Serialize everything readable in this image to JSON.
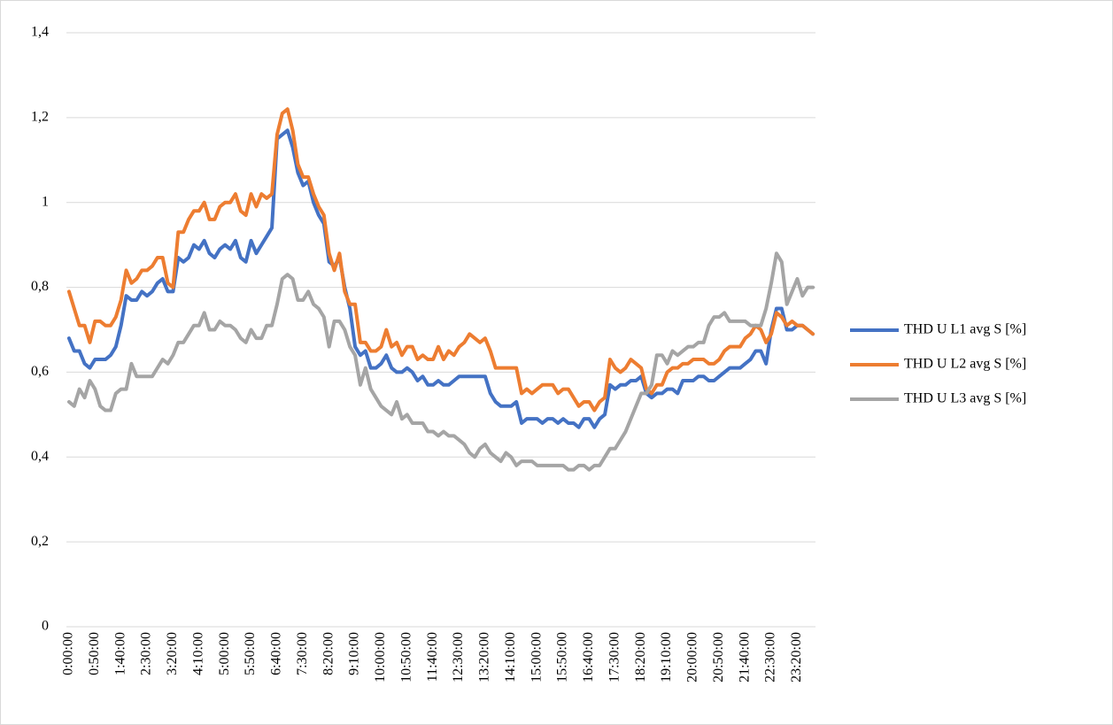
{
  "chart_data": {
    "type": "line",
    "categories": [
      "0:00:00",
      null,
      null,
      null,
      null,
      "0:50:00",
      null,
      null,
      null,
      null,
      "1:40:00",
      null,
      null,
      null,
      null,
      "2:30:00",
      null,
      null,
      null,
      null,
      "3:20:00",
      null,
      null,
      null,
      null,
      "4:10:00",
      null,
      null,
      null,
      null,
      "5:00:00",
      null,
      null,
      null,
      null,
      "5:50:00",
      null,
      null,
      null,
      null,
      "6:40:00",
      null,
      null,
      null,
      null,
      "7:30:00",
      null,
      null,
      null,
      null,
      "8:20:00",
      null,
      null,
      null,
      null,
      "9:10:00",
      null,
      null,
      null,
      null,
      "10:00:00",
      null,
      null,
      null,
      null,
      "10:50:00",
      null,
      null,
      null,
      null,
      "11:40:00",
      null,
      null,
      null,
      null,
      "12:30:00",
      null,
      null,
      null,
      null,
      "13:20:00",
      null,
      null,
      null,
      null,
      "14:10:00",
      null,
      null,
      null,
      null,
      "15:00:00",
      null,
      null,
      null,
      null,
      "15:50:00",
      null,
      null,
      null,
      null,
      "16:40:00",
      null,
      null,
      null,
      null,
      "17:30:00",
      null,
      null,
      null,
      null,
      "18:20:00",
      null,
      null,
      null,
      null,
      "19:10:00",
      null,
      null,
      null,
      null,
      "20:00:00",
      null,
      null,
      null,
      null,
      "20:50:00",
      null,
      null,
      null,
      null,
      "21:40:00",
      null,
      null,
      null,
      null,
      "22:30:00",
      null,
      null,
      null,
      null,
      "23:20:00",
      null,
      null,
      null
    ],
    "series": [
      {
        "name": "THD U L1 avg S [%]",
        "color": "#4472c4",
        "values": [
          0.68,
          0.65,
          0.65,
          0.62,
          0.61,
          0.63,
          0.63,
          0.63,
          0.64,
          0.66,
          0.71,
          0.78,
          0.77,
          0.77,
          0.79,
          0.78,
          0.79,
          0.81,
          0.82,
          0.79,
          0.79,
          0.87,
          0.86,
          0.87,
          0.9,
          0.89,
          0.91,
          0.88,
          0.87,
          0.89,
          0.9,
          0.89,
          0.91,
          0.87,
          0.86,
          0.91,
          0.88,
          0.9,
          0.92,
          0.94,
          1.15,
          1.16,
          1.17,
          1.13,
          1.07,
          1.04,
          1.05,
          1.0,
          0.97,
          0.95,
          0.86,
          0.85,
          0.87,
          0.8,
          0.75,
          0.66,
          0.64,
          0.65,
          0.61,
          0.61,
          0.62,
          0.64,
          0.61,
          0.6,
          0.6,
          0.61,
          0.6,
          0.58,
          0.59,
          0.57,
          0.57,
          0.58,
          0.57,
          0.57,
          0.58,
          0.59,
          0.59,
          0.59,
          0.59,
          0.59,
          0.59,
          0.55,
          0.53,
          0.52,
          0.52,
          0.52,
          0.53,
          0.48,
          0.49,
          0.49,
          0.49,
          0.48,
          0.49,
          0.49,
          0.48,
          0.49,
          0.48,
          0.48,
          0.47,
          0.49,
          0.49,
          0.47,
          0.49,
          0.5,
          0.57,
          0.56,
          0.57,
          0.57,
          0.58,
          0.58,
          0.59,
          0.55,
          0.54,
          0.55,
          0.55,
          0.56,
          0.56,
          0.55,
          0.58,
          0.58,
          0.58,
          0.59,
          0.59,
          0.58,
          0.58,
          0.59,
          0.6,
          0.61,
          0.61,
          0.61,
          0.62,
          0.63,
          0.65,
          0.65,
          0.62,
          0.7,
          0.75,
          0.75,
          0.7,
          0.7,
          0.71,
          0.71,
          0.7,
          0.69
        ]
      },
      {
        "name": "THD U L2 avg S [%]",
        "color": "#ed7d31",
        "values": [
          0.79,
          0.75,
          0.71,
          0.71,
          0.67,
          0.72,
          0.72,
          0.71,
          0.71,
          0.73,
          0.77,
          0.84,
          0.81,
          0.82,
          0.84,
          0.84,
          0.85,
          0.87,
          0.87,
          0.81,
          0.8,
          0.93,
          0.93,
          0.96,
          0.98,
          0.98,
          1.0,
          0.96,
          0.96,
          0.99,
          1.0,
          1.0,
          1.02,
          0.98,
          0.97,
          1.02,
          0.99,
          1.02,
          1.01,
          1.02,
          1.16,
          1.21,
          1.22,
          1.17,
          1.09,
          1.06,
          1.06,
          1.02,
          0.99,
          0.97,
          0.88,
          0.84,
          0.88,
          0.79,
          0.76,
          0.76,
          0.67,
          0.67,
          0.65,
          0.65,
          0.66,
          0.7,
          0.66,
          0.67,
          0.64,
          0.66,
          0.66,
          0.63,
          0.64,
          0.63,
          0.63,
          0.66,
          0.63,
          0.65,
          0.64,
          0.66,
          0.67,
          0.69,
          0.68,
          0.67,
          0.68,
          0.65,
          0.61,
          0.61,
          0.61,
          0.61,
          0.61,
          0.55,
          0.56,
          0.55,
          0.56,
          0.57,
          0.57,
          0.57,
          0.55,
          0.56,
          0.56,
          0.54,
          0.52,
          0.53,
          0.53,
          0.51,
          0.53,
          0.54,
          0.63,
          0.61,
          0.6,
          0.61,
          0.63,
          0.62,
          0.61,
          0.56,
          0.55,
          0.57,
          0.57,
          0.6,
          0.61,
          0.61,
          0.62,
          0.62,
          0.63,
          0.63,
          0.63,
          0.62,
          0.62,
          0.63,
          0.65,
          0.66,
          0.66,
          0.66,
          0.68,
          0.69,
          0.71,
          0.7,
          0.67,
          0.69,
          0.74,
          0.73,
          0.71,
          0.72,
          0.71,
          0.71,
          0.7,
          0.69
        ]
      },
      {
        "name": "THD U L3 avg S [%]",
        "color": "#a5a5a5",
        "values": [
          0.53,
          0.52,
          0.56,
          0.54,
          0.58,
          0.56,
          0.52,
          0.51,
          0.51,
          0.55,
          0.56,
          0.56,
          0.62,
          0.59,
          0.59,
          0.59,
          0.59,
          0.61,
          0.63,
          0.62,
          0.64,
          0.67,
          0.67,
          0.69,
          0.71,
          0.71,
          0.74,
          0.7,
          0.7,
          0.72,
          0.71,
          0.71,
          0.7,
          0.68,
          0.67,
          0.7,
          0.68,
          0.68,
          0.71,
          0.71,
          0.76,
          0.82,
          0.83,
          0.82,
          0.77,
          0.77,
          0.79,
          0.76,
          0.75,
          0.73,
          0.66,
          0.72,
          0.72,
          0.7,
          0.66,
          0.64,
          0.57,
          0.61,
          0.56,
          0.54,
          0.52,
          0.51,
          0.5,
          0.53,
          0.49,
          0.5,
          0.48,
          0.48,
          0.48,
          0.46,
          0.46,
          0.45,
          0.46,
          0.45,
          0.45,
          0.44,
          0.43,
          0.41,
          0.4,
          0.42,
          0.43,
          0.41,
          0.4,
          0.39,
          0.41,
          0.4,
          0.38,
          0.39,
          0.39,
          0.39,
          0.38,
          0.38,
          0.38,
          0.38,
          0.38,
          0.38,
          0.37,
          0.37,
          0.38,
          0.38,
          0.37,
          0.38,
          0.38,
          0.4,
          0.42,
          0.42,
          0.44,
          0.46,
          0.49,
          0.52,
          0.55,
          0.55,
          0.57,
          0.64,
          0.64,
          0.62,
          0.65,
          0.64,
          0.65,
          0.66,
          0.66,
          0.67,
          0.67,
          0.71,
          0.73,
          0.73,
          0.74,
          0.72,
          0.72,
          0.72,
          0.72,
          0.71,
          0.71,
          0.71,
          0.75,
          0.81,
          0.88,
          0.86,
          0.76,
          0.79,
          0.82,
          0.78,
          0.8,
          0.8
        ]
      }
    ],
    "ylim": [
      0,
      1.4
    ],
    "yticks": [
      0,
      {
        "value": 0.2,
        "label": "0,2"
      },
      {
        "value": 0.4,
        "label": "0,4"
      },
      {
        "value": 0.6,
        "label": "0,6"
      },
      {
        "value": 0.8,
        "label": "0,8"
      },
      1,
      {
        "value": 1.2,
        "label": "1,2"
      },
      {
        "value": 1.4,
        "label": "1,4"
      }
    ],
    "grid": true,
    "legend": "right"
  }
}
